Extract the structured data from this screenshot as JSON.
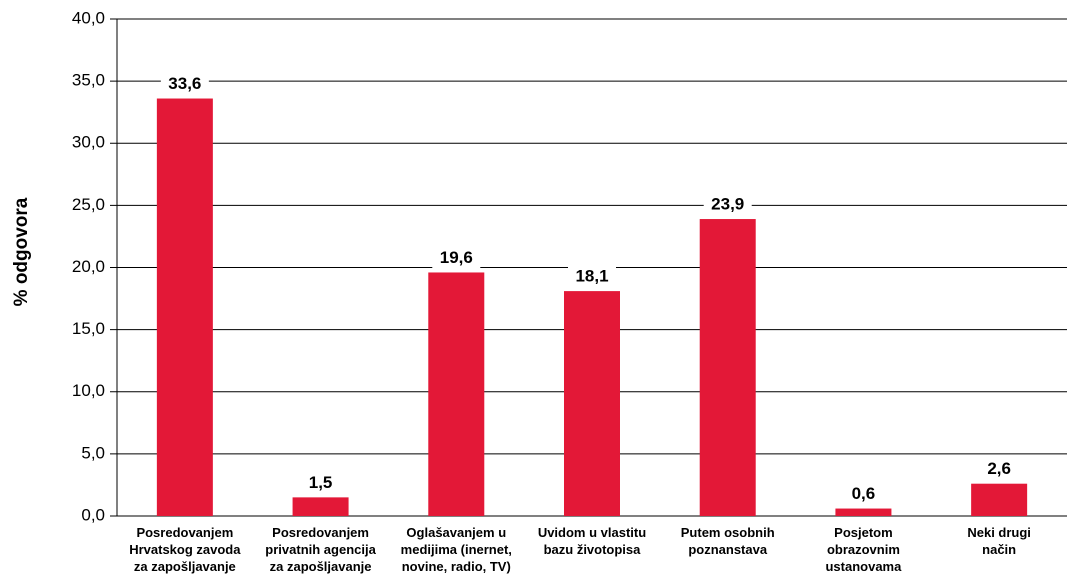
{
  "chart_data": {
    "type": "bar",
    "y_axis_label": "% odgovora",
    "categories": [
      [
        "Posredovanjem",
        "Hrvatskog zavoda",
        "za zapošljavanje"
      ],
      [
        "Posredovanjem",
        "privatnih agencija",
        "za zapošljavanje"
      ],
      [
        "Oglašavanjem u",
        "medijima (inernet,",
        "novine, radio, TV)"
      ],
      [
        "Uvidom u vlastitu",
        "bazu životopisa"
      ],
      [
        "Putem osobnih",
        "poznanstava"
      ],
      [
        "Posjetom",
        "obrazovnim",
        "ustanovama"
      ],
      [
        "Neki drugi",
        "način"
      ]
    ],
    "values": [
      33.6,
      1.5,
      19.6,
      18.1,
      23.9,
      0.6,
      2.6
    ],
    "value_labels": [
      "33,6",
      "1,5",
      "19,6",
      "18,1",
      "23,9",
      "0,6",
      "2,6"
    ],
    "color": "#e31837",
    "ylim": [
      0,
      40
    ],
    "yticks": [
      {
        "value": 0,
        "label": "0,0"
      },
      {
        "value": 5,
        "label": "5,0"
      },
      {
        "value": 10,
        "label": "10,0"
      },
      {
        "value": 15,
        "label": "15,0"
      },
      {
        "value": 20,
        "label": "20,0"
      },
      {
        "value": 25,
        "label": "25,0"
      },
      {
        "value": 30,
        "label": "30,0"
      },
      {
        "value": 35,
        "label": "35,0"
      },
      {
        "value": 40,
        "label": "40,0"
      }
    ],
    "grid": true
  }
}
